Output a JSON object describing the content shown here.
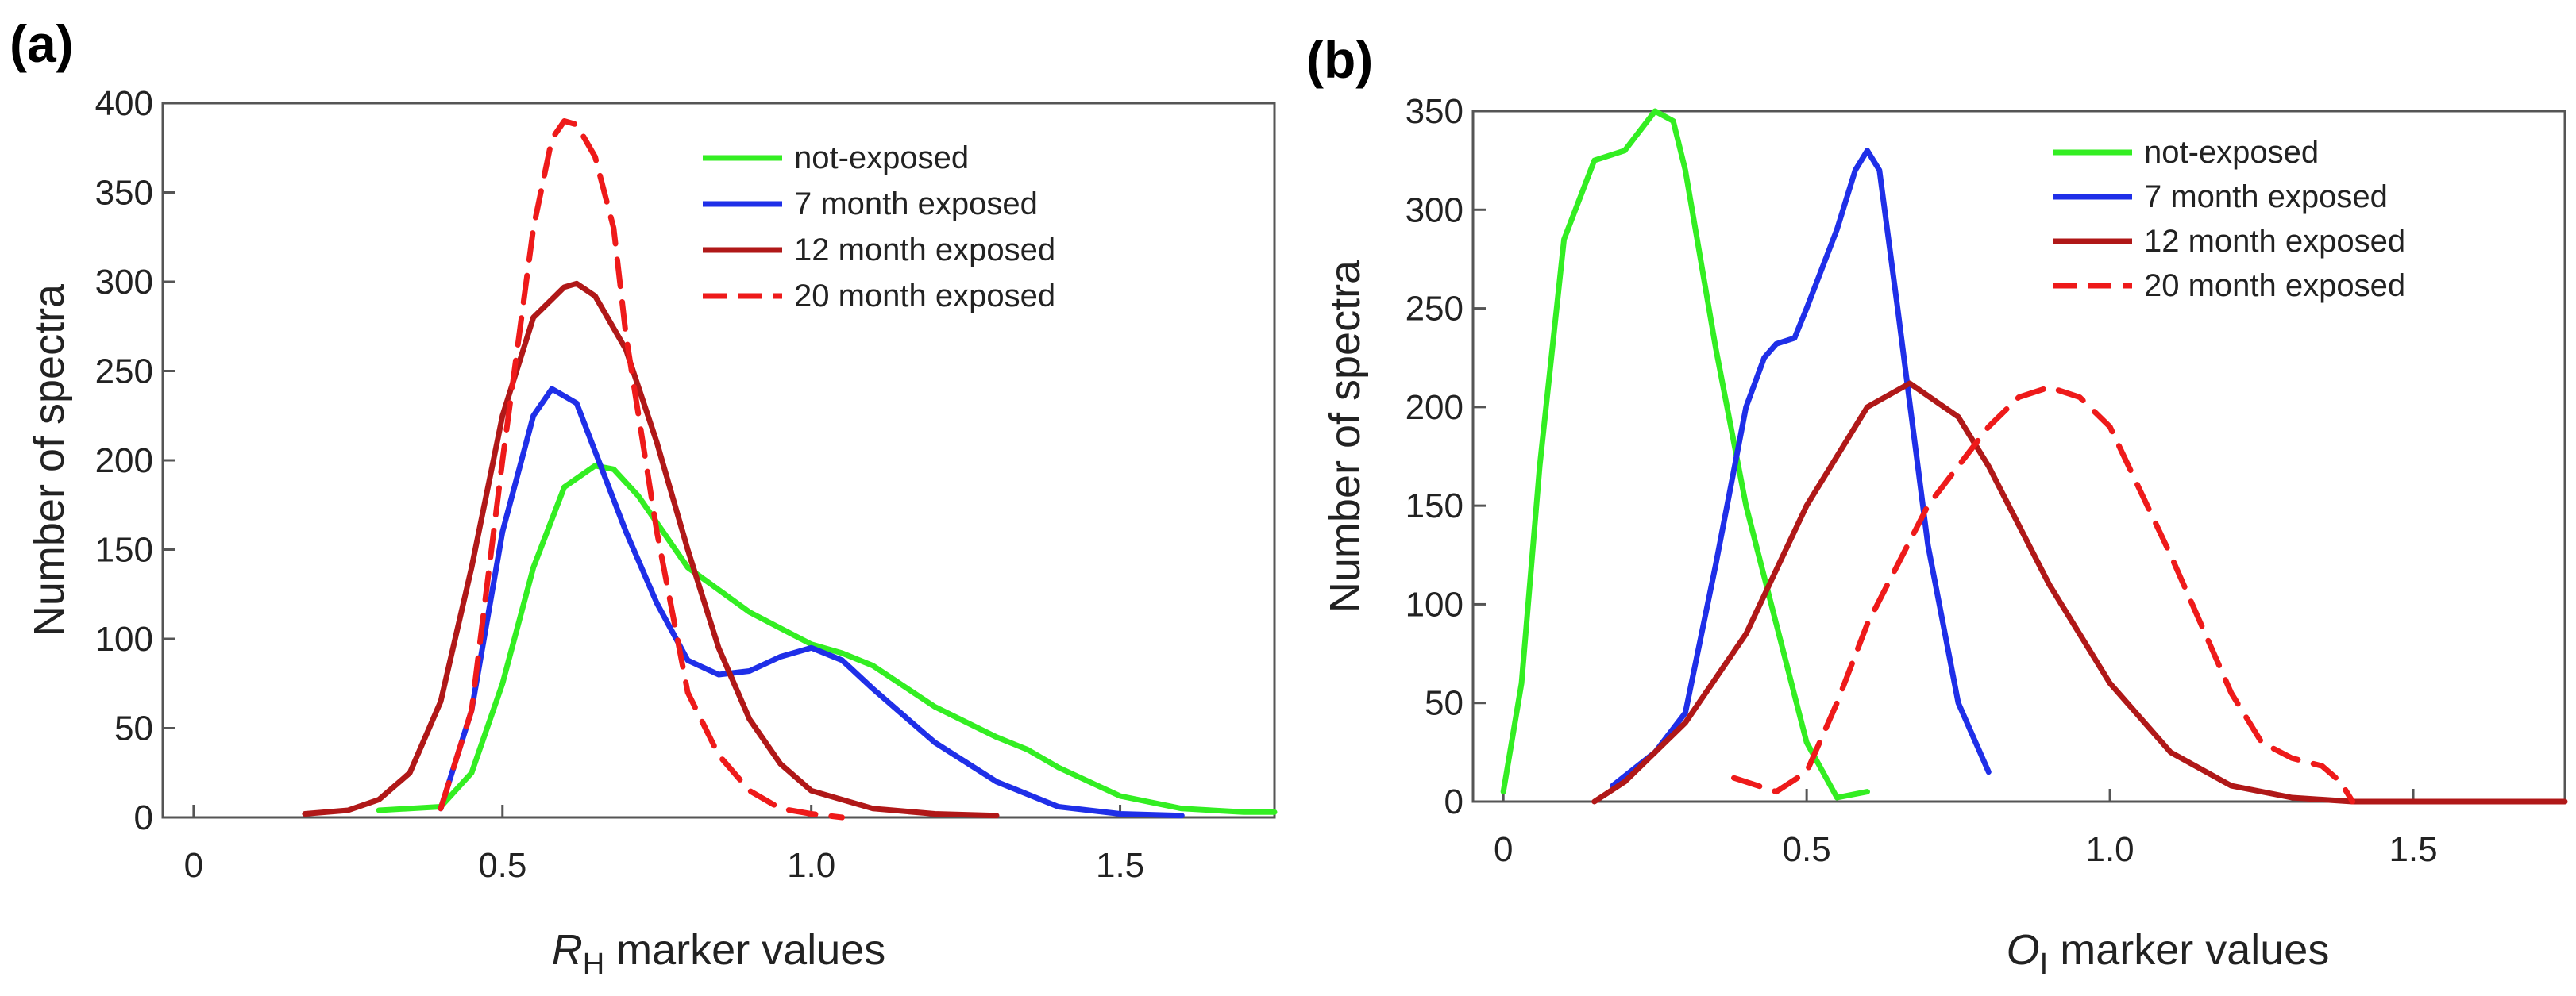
{
  "figure": {
    "panels": [
      "(a)",
      "(b)"
    ]
  },
  "colors": {
    "not_exposed": "#33ee22",
    "m7": "#1f2fe8",
    "m12": "#b01818",
    "m20": "#ee1a1a"
  },
  "chart_data": [
    {
      "type": "line",
      "panel_label": "(a)",
      "title": "",
      "xlabel_italic": "R",
      "xlabel_sub": "H",
      "xlabel_rest": " marker values",
      "ylabel": "Number of spectra",
      "xlim": [
        -0.05,
        1.75
      ],
      "ylim": [
        0,
        400
      ],
      "xticks": [
        0,
        0.5,
        1.0,
        1.5
      ],
      "xtick_labels": [
        "0",
        "0.5",
        "1.0",
        "1.5"
      ],
      "yticks": [
        0,
        50,
        100,
        150,
        200,
        250,
        300,
        350,
        400
      ],
      "ytick_labels": [
        "0",
        "50",
        "100",
        "150",
        "200",
        "250",
        "300",
        "350",
        "400"
      ],
      "legend_position": "top-right",
      "series": [
        {
          "name": "not-exposed",
          "color": "#33ee22",
          "dash": false,
          "x": [
            0.3,
            0.4,
            0.45,
            0.5,
            0.55,
            0.6,
            0.65,
            0.68,
            0.72,
            0.8,
            0.9,
            1.0,
            1.05,
            1.1,
            1.2,
            1.3,
            1.35,
            1.4,
            1.5,
            1.6,
            1.7,
            1.75
          ],
          "y": [
            4,
            6,
            25,
            75,
            140,
            185,
            197,
            195,
            180,
            140,
            115,
            97,
            92,
            85,
            62,
            45,
            38,
            28,
            12,
            5,
            3,
            3
          ]
        },
        {
          "name": "7 month exposed",
          "color": "#1f2fe8",
          "dash": false,
          "x": [
            0.4,
            0.45,
            0.5,
            0.55,
            0.58,
            0.62,
            0.65,
            0.7,
            0.75,
            0.8,
            0.85,
            0.9,
            0.95,
            1.0,
            1.05,
            1.1,
            1.2,
            1.3,
            1.4,
            1.5,
            1.6
          ],
          "y": [
            5,
            60,
            160,
            225,
            240,
            232,
            205,
            160,
            120,
            88,
            80,
            82,
            90,
            95,
            88,
            72,
            42,
            20,
            6,
            2,
            1
          ]
        },
        {
          "name": "12 month exposed",
          "color": "#b01818",
          "dash": false,
          "x": [
            0.18,
            0.25,
            0.3,
            0.35,
            0.4,
            0.45,
            0.5,
            0.55,
            0.6,
            0.62,
            0.65,
            0.7,
            0.75,
            0.8,
            0.85,
            0.9,
            0.95,
            1.0,
            1.1,
            1.2,
            1.3
          ],
          "y": [
            2,
            4,
            10,
            25,
            65,
            140,
            225,
            280,
            297,
            299,
            292,
            262,
            210,
            150,
            95,
            55,
            30,
            15,
            5,
            2,
            1
          ]
        },
        {
          "name": "20 month exposed",
          "color": "#ee1a1a",
          "dash": true,
          "x": [
            0.4,
            0.45,
            0.5,
            0.55,
            0.58,
            0.6,
            0.62,
            0.65,
            0.68,
            0.7,
            0.75,
            0.8,
            0.85,
            0.9,
            0.95,
            1.0,
            1.05
          ],
          "y": [
            5,
            60,
            200,
            330,
            380,
            390,
            388,
            370,
            330,
            270,
            160,
            70,
            35,
            15,
            5,
            2,
            0
          ]
        }
      ]
    },
    {
      "type": "line",
      "panel_label": "(b)",
      "title": "",
      "xlabel_italic": "O",
      "xlabel_sub": "I",
      "xlabel_rest": " marker values",
      "ylabel": "Number of spectra",
      "xlim": [
        -0.05,
        1.75
      ],
      "ylim": [
        0,
        350
      ],
      "xticks": [
        0,
        0.5,
        1.0,
        1.5
      ],
      "xtick_labels": [
        "0",
        "0.5",
        "1.0",
        "1.5"
      ],
      "yticks": [
        0,
        50,
        100,
        150,
        200,
        250,
        300,
        350
      ],
      "ytick_labels": [
        "0",
        "50",
        "100",
        "150",
        "200",
        "250",
        "300",
        "350"
      ],
      "legend_position": "top-right",
      "series": [
        {
          "name": "not-exposed",
          "color": "#33ee22",
          "dash": false,
          "x": [
            0.0,
            0.03,
            0.06,
            0.1,
            0.15,
            0.2,
            0.25,
            0.28,
            0.3,
            0.35,
            0.4,
            0.45,
            0.5,
            0.55,
            0.6
          ],
          "y": [
            5,
            60,
            170,
            285,
            325,
            330,
            350,
            345,
            320,
            230,
            150,
            90,
            30,
            2,
            5
          ]
        },
        {
          "name": "7 month exposed",
          "color": "#1f2fe8",
          "dash": false,
          "x": [
            0.18,
            0.25,
            0.3,
            0.35,
            0.4,
            0.43,
            0.45,
            0.48,
            0.5,
            0.55,
            0.58,
            0.6,
            0.62,
            0.65,
            0.7,
            0.75,
            0.8
          ],
          "y": [
            8,
            25,
            45,
            120,
            200,
            225,
            232,
            235,
            250,
            290,
            320,
            330,
            320,
            250,
            130,
            50,
            15
          ]
        },
        {
          "name": "12 month exposed",
          "color": "#b01818",
          "dash": false,
          "x": [
            0.15,
            0.2,
            0.3,
            0.4,
            0.5,
            0.6,
            0.67,
            0.75,
            0.8,
            0.9,
            1.0,
            1.1,
            1.2,
            1.3,
            1.4,
            1.5,
            1.75
          ],
          "y": [
            0,
            10,
            40,
            85,
            150,
            200,
            212,
            195,
            170,
            110,
            60,
            25,
            8,
            2,
            0,
            0,
            0
          ]
        },
        {
          "name": "20 month exposed",
          "color": "#ee1a1a",
          "dash": true,
          "x": [
            0.38,
            0.45,
            0.5,
            0.55,
            0.6,
            0.7,
            0.8,
            0.85,
            0.9,
            0.95,
            1.0,
            1.1,
            1.2,
            1.25,
            1.3,
            1.35,
            1.38,
            1.4
          ],
          "y": [
            12,
            5,
            15,
            50,
            90,
            150,
            190,
            205,
            210,
            205,
            190,
            125,
            55,
            30,
            22,
            18,
            10,
            0
          ]
        }
      ]
    }
  ]
}
